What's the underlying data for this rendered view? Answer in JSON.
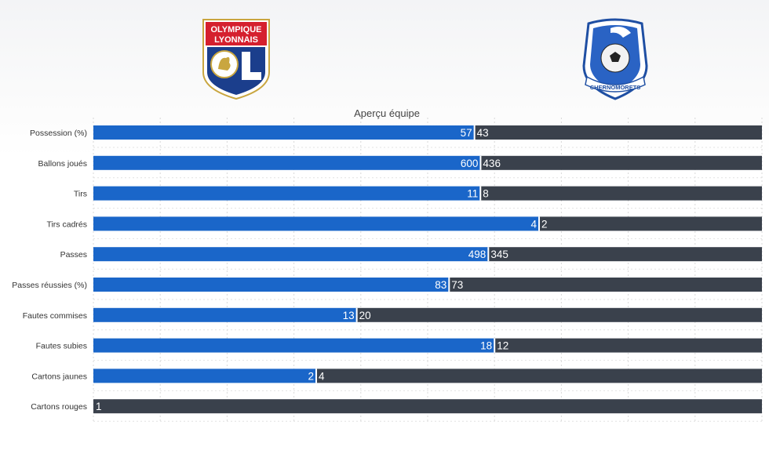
{
  "teams": {
    "home": {
      "logo_text_line1": "OLYMPIQUE",
      "logo_text_line2": "LYONNAIS",
      "logo_icon": "lion-shield-logo",
      "color": "#1a66c9"
    },
    "away": {
      "logo_text": "CHERNOMORETS",
      "logo_icon": "football-shield-logo",
      "color": "#3a414c"
    }
  },
  "chart_data": {
    "type": "bar",
    "orientation": "horizontal-stacked-percent",
    "title": "Aperçu équipe",
    "categories": [
      "Possession (%)",
      "Ballons joués",
      "Tirs",
      "Tirs cadrés",
      "Passes",
      "Passes réussies (%)",
      "Fautes commises",
      "Fautes subies",
      "Cartons jaunes",
      "Cartons rouges"
    ],
    "series": [
      {
        "values": [
          57,
          600,
          11,
          4,
          498,
          83,
          13,
          18,
          2,
          0
        ],
        "color": "#1a66c9"
      },
      {
        "values": [
          43,
          436,
          8,
          2,
          345,
          73,
          20,
          12,
          4,
          1
        ],
        "color": "#3a414c"
      }
    ],
    "grid": true,
    "legend": "none"
  }
}
